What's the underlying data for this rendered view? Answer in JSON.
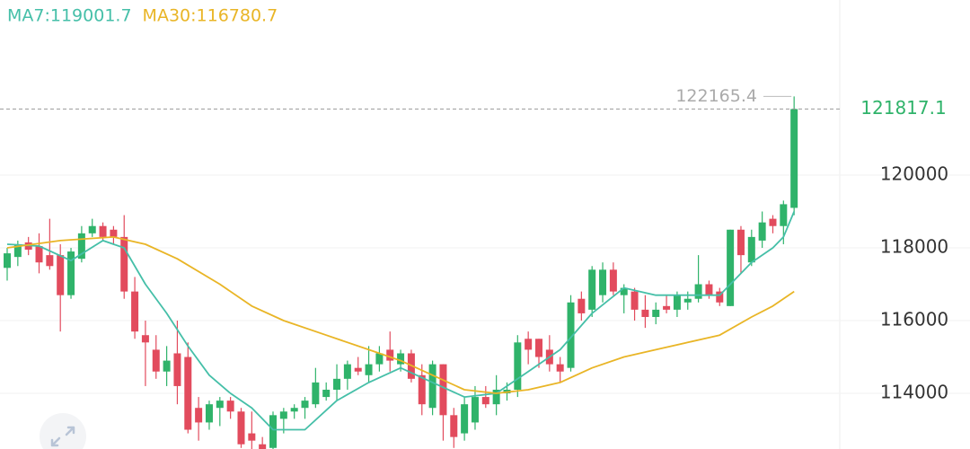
{
  "chart_data": {
    "type": "candlestick",
    "ylim": [
      112470,
      124815
    ],
    "yticks": [
      114000,
      116000,
      118000,
      120000
    ],
    "grid": true,
    "up_color": "#2fb36a",
    "down_color": "#e24b5d",
    "last_price": 121817.1,
    "high_label": 122165.4,
    "ohlc": [
      [
        117450,
        118000,
        117100,
        117850
      ],
      [
        117750,
        118200,
        117500,
        118100
      ],
      [
        118150,
        118300,
        117800,
        117950
      ],
      [
        118050,
        118400,
        117300,
        117600
      ],
      [
        117800,
        118800,
        117400,
        117500
      ],
      [
        117800,
        118100,
        115700,
        116700
      ],
      [
        116700,
        118000,
        116600,
        117900
      ],
      [
        117700,
        118600,
        117600,
        118400
      ],
      [
        118400,
        118800,
        118300,
        118600
      ],
      [
        118600,
        118700,
        118200,
        118300
      ],
      [
        118500,
        118600,
        118100,
        118300
      ],
      [
        118300,
        118900,
        116600,
        116800
      ],
      [
        116800,
        117200,
        115500,
        115700
      ],
      [
        115600,
        116000,
        114200,
        115400
      ],
      [
        115200,
        115600,
        114400,
        114600
      ],
      [
        114600,
        115300,
        114200,
        114900
      ],
      [
        115100,
        116000,
        113700,
        114200
      ],
      [
        115000,
        115400,
        112900,
        113000
      ],
      [
        113600,
        113900,
        112700,
        113200
      ],
      [
        113200,
        113800,
        113000,
        113700
      ],
      [
        113600,
        113900,
        113100,
        113800
      ],
      [
        113800,
        113900,
        113300,
        113500
      ],
      [
        113500,
        113600,
        112500,
        112600
      ],
      [
        112900,
        113500,
        112300,
        112700
      ],
      [
        112600,
        112800,
        112300,
        112400
      ],
      [
        112500,
        113500,
        112400,
        113400
      ],
      [
        113300,
        113600,
        112900,
        113500
      ],
      [
        113500,
        113700,
        113300,
        113600
      ],
      [
        113600,
        113900,
        113300,
        113800
      ],
      [
        113700,
        114700,
        113600,
        114300
      ],
      [
        113900,
        114300,
        113800,
        114100
      ],
      [
        114100,
        114800,
        113800,
        114400
      ],
      [
        114400,
        114900,
        114100,
        114800
      ],
      [
        114700,
        115000,
        114500,
        114600
      ],
      [
        114500,
        115300,
        114300,
        114800
      ],
      [
        114800,
        115300,
        114600,
        115100
      ],
      [
        115200,
        115700,
        114600,
        114900
      ],
      [
        114800,
        115200,
        114600,
        115100
      ],
      [
        115100,
        115200,
        114300,
        114400
      ],
      [
        114500,
        114800,
        113400,
        113700
      ],
      [
        113600,
        114900,
        113400,
        114800
      ],
      [
        114800,
        114800,
        112700,
        113400
      ],
      [
        113400,
        113600,
        112500,
        112800
      ],
      [
        112900,
        113900,
        112700,
        113700
      ],
      [
        113200,
        114200,
        113000,
        113900
      ],
      [
        113900,
        114200,
        113600,
        113700
      ],
      [
        113700,
        114500,
        113400,
        114100
      ],
      [
        114000,
        114300,
        113800,
        114100
      ],
      [
        114100,
        115600,
        113900,
        115400
      ],
      [
        115500,
        115700,
        114800,
        115200
      ],
      [
        115500,
        115500,
        114700,
        115000
      ],
      [
        115200,
        115600,
        114600,
        114800
      ],
      [
        114800,
        115000,
        114300,
        114600
      ],
      [
        114700,
        116700,
        114600,
        116500
      ],
      [
        116600,
        116800,
        116000,
        116200
      ],
      [
        116300,
        117500,
        116100,
        117400
      ],
      [
        116700,
        117600,
        116500,
        117400
      ],
      [
        117400,
        117600,
        116700,
        116800
      ],
      [
        116700,
        117000,
        116200,
        116900
      ],
      [
        116800,
        116900,
        116000,
        116300
      ],
      [
        116300,
        116700,
        115800,
        116100
      ],
      [
        116100,
        116500,
        115900,
        116300
      ],
      [
        116400,
        116700,
        116200,
        116300
      ],
      [
        116300,
        116800,
        116100,
        116700
      ],
      [
        116500,
        116800,
        116300,
        116600
      ],
      [
        116600,
        117800,
        116500,
        117000
      ],
      [
        117000,
        117100,
        116600,
        116700
      ],
      [
        116800,
        116900,
        116400,
        116500
      ],
      [
        116400,
        118500,
        116400,
        118500
      ],
      [
        118500,
        118600,
        117300,
        117800
      ],
      [
        117600,
        118500,
        117500,
        118300
      ],
      [
        118200,
        119000,
        118000,
        118700
      ],
      [
        118800,
        118900,
        118400,
        118600
      ],
      [
        118600,
        119300,
        118100,
        119200
      ],
      [
        119100,
        122165.4,
        118900,
        121817.1
      ]
    ],
    "series": [
      {
        "name": "MA7:119001.7",
        "color": "#45bfa8",
        "x": [
          0,
          3,
          6,
          9,
          11,
          13,
          15,
          17,
          19,
          21,
          23,
          25,
          28,
          31,
          34,
          37,
          40,
          43,
          46,
          49,
          52,
          55,
          58,
          61,
          64,
          67,
          70,
          72,
          73,
          74
        ],
        "values": [
          118100,
          118050,
          117650,
          118200,
          118000,
          117000,
          116200,
          115300,
          114500,
          114000,
          113600,
          113000,
          113000,
          113800,
          114300,
          114700,
          114300,
          113900,
          114000,
          114600,
          115200,
          116200,
          116900,
          116700,
          116700,
          116700,
          117600,
          118000,
          118300,
          119000
        ]
      },
      {
        "name": "MA30:116780.7",
        "color": "#e9b526",
        "x": [
          0,
          5,
          10,
          13,
          16,
          20,
          23,
          26,
          30,
          34,
          37,
          40,
          43,
          46,
          49,
          52,
          55,
          58,
          61,
          64,
          67,
          70,
          72,
          74
        ],
        "values": [
          118000,
          118200,
          118300,
          118100,
          117700,
          117000,
          116400,
          116000,
          115600,
          115200,
          114900,
          114500,
          114100,
          114000,
          114100,
          114300,
          114700,
          115000,
          115200,
          115400,
          115600,
          116100,
          116400,
          116800
        ]
      }
    ]
  }
}
